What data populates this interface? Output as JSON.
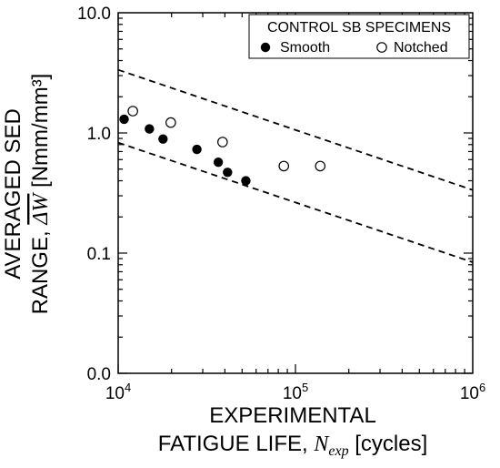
{
  "chart_data": {
    "type": "scatter",
    "title": "",
    "x_scale": "log",
    "y_scale": "log",
    "xlim": [
      10000,
      1000000
    ],
    "ylim": [
      0.01,
      10
    ],
    "x_ticks": [
      {
        "value": 10000,
        "mantissa": "10",
        "exp": "4"
      },
      {
        "value": 100000,
        "mantissa": "10",
        "exp": "5"
      },
      {
        "value": 1000000,
        "mantissa": "10",
        "exp": "6"
      }
    ],
    "y_ticks": [
      {
        "value": 0.01,
        "label": "0.0"
      },
      {
        "value": 0.1,
        "label": "0.1"
      },
      {
        "value": 1,
        "label": "1.0"
      },
      {
        "value": 10,
        "label": "10.0"
      }
    ],
    "xlabel": {
      "line1": "EXPERIMENTAL",
      "line2_prefix": "FATIGUE LIFE, ",
      "symbol": "N",
      "subscript": "exp",
      "line2_suffix": " [cycles]"
    },
    "ylabel": {
      "line1": "AVERAGED SED",
      "line2_prefix": "RANGE, ",
      "symbol": "ΔW",
      "line2_suffix": " [Nmm/mm³]"
    },
    "legend": {
      "title": "CONTROL SB SPECIMENS",
      "position": "top-right"
    },
    "grid": false,
    "series": [
      {
        "name": "Smooth",
        "marker": "filled-circle",
        "points": [
          {
            "x": 10800,
            "y": 1.3
          },
          {
            "x": 15000,
            "y": 1.08
          },
          {
            "x": 17900,
            "y": 0.89
          },
          {
            "x": 27800,
            "y": 0.73
          },
          {
            "x": 36700,
            "y": 0.57
          },
          {
            "x": 41400,
            "y": 0.47
          },
          {
            "x": 52500,
            "y": 0.4
          }
        ]
      },
      {
        "name": "Notched",
        "marker": "open-circle",
        "points": [
          {
            "x": 12100,
            "y": 1.52
          },
          {
            "x": 19800,
            "y": 1.22
          },
          {
            "x": 38800,
            "y": 0.84
          },
          {
            "x": 86000,
            "y": 0.53
          },
          {
            "x": 138000,
            "y": 0.53
          }
        ]
      }
    ],
    "scatter_bands": [
      {
        "name": "upper",
        "style": "dashed",
        "points": [
          {
            "x": 10000,
            "y": 3.35
          },
          {
            "x": 1000000,
            "y": 0.335
          }
        ]
      },
      {
        "name": "lower",
        "style": "dashed",
        "points": [
          {
            "x": 10000,
            "y": 0.83
          },
          {
            "x": 1000000,
            "y": 0.084
          }
        ]
      }
    ]
  }
}
